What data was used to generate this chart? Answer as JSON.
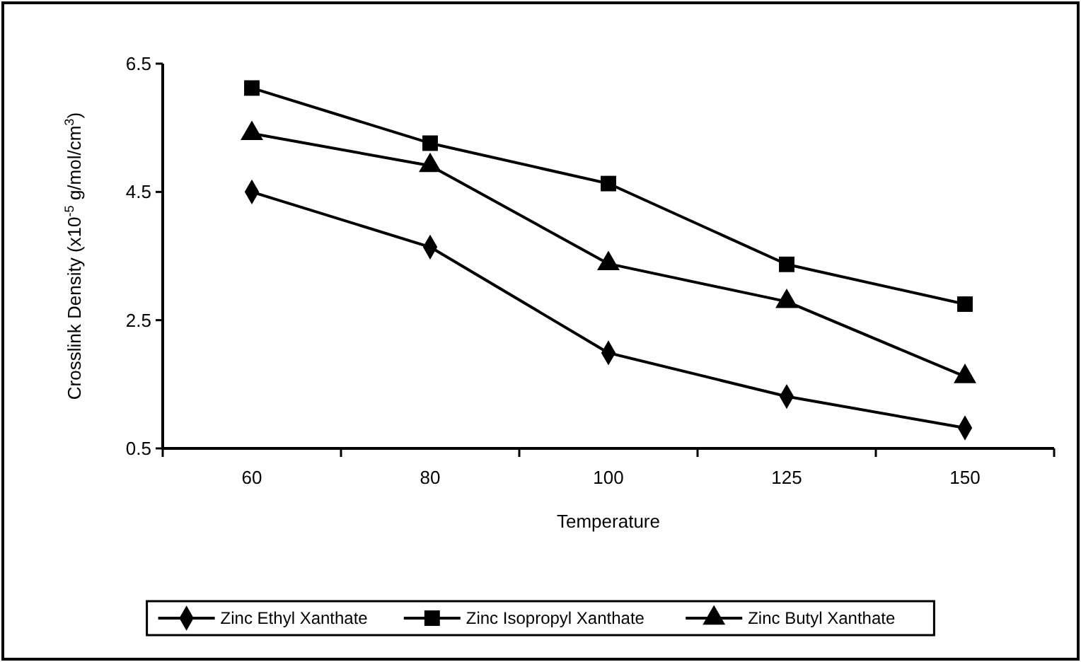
{
  "chart_data": {
    "type": "line",
    "xlabel": "Temperature",
    "ylabel": "Crosslink Density (x10$^{-5}$ g/mol/cm$^{3}$)",
    "categories": [
      "60",
      "80",
      "100",
      "125",
      "150"
    ],
    "series": [
      {
        "name": "Zinc Ethyl Xanthate",
        "color": "#000000",
        "marker": "diamond",
        "values": [
          4.5,
          3.64,
          1.99,
          1.31,
          0.82
        ]
      },
      {
        "name": "Zinc Isopropyl Xanthate",
        "color": "#000000",
        "marker": "square",
        "values": [
          6.12,
          5.26,
          4.63,
          3.37,
          2.75
        ]
      },
      {
        "name": "Zinc Butyl Xanthate",
        "color": "#000000",
        "marker": "triangle",
        "values": [
          5.41,
          4.91,
          3.38,
          2.79,
          1.62
        ]
      }
    ],
    "ylim": [
      0.5,
      6.5
    ],
    "yticks": [
      0.5,
      2.5,
      4.5,
      6.5
    ],
    "grid": false,
    "legend": "bottom",
    "line_style": "solid"
  }
}
